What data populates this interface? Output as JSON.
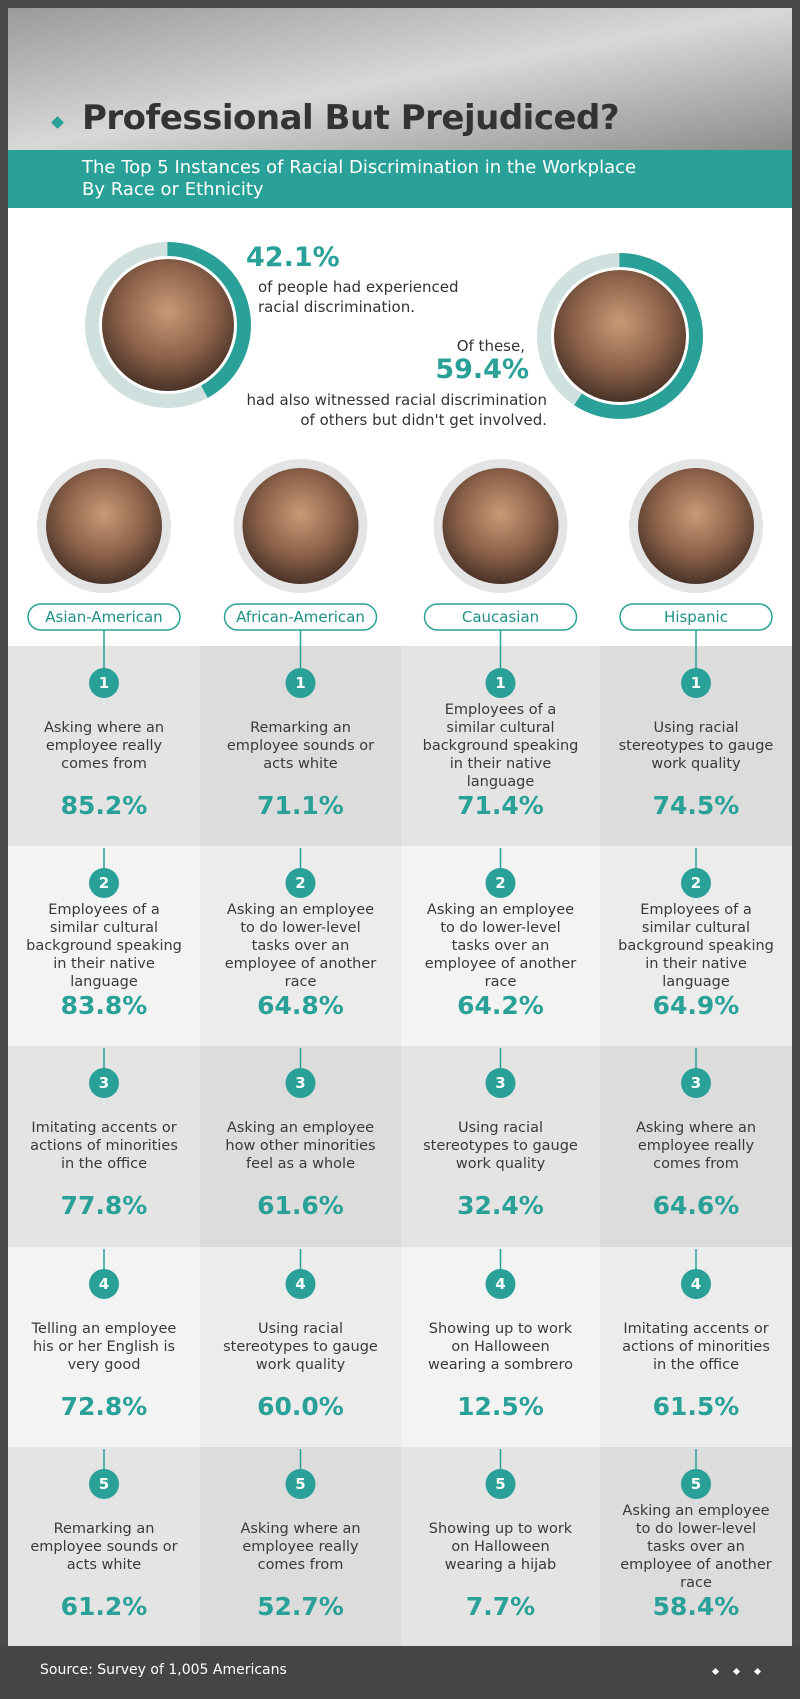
{
  "header": {
    "title": "Professional But Prejudiced?",
    "subtitle": [
      "The Top 5 Instances of Racial Discrimination in the Workplace",
      "By Race or Ethnicity"
    ]
  },
  "stats": {
    "values": [
      42.1,
      59.4
    ],
    "value_labels": [
      "42.1%",
      "59.4%"
    ],
    "first_text": [
      "of people had experienced",
      "racial discrimination."
    ],
    "second_intro": "Of these,",
    "second_text": [
      "had also witnessed racial discrimination",
      "of others but didn't get involved."
    ]
  },
  "groups": [
    {
      "name": "Asian-American",
      "items": [
        {
          "rank": "1",
          "text": "Asking where an employee really comes from",
          "value": "85.2%"
        },
        {
          "rank": "2",
          "text": "Employees of a similar cultural background speaking in their native language",
          "value": "83.8%"
        },
        {
          "rank": "3",
          "text": "Imitating accents or actions of minorities in the office",
          "value": "77.8%"
        },
        {
          "rank": "4",
          "text": "Telling an employee his or her English is very good",
          "value": "72.8%"
        },
        {
          "rank": "5",
          "text": "Remarking an employee sounds or acts white",
          "value": "61.2%"
        }
      ]
    },
    {
      "name": "African-American",
      "items": [
        {
          "rank": "1",
          "text": "Remarking an employee sounds or acts white",
          "value": "71.1%"
        },
        {
          "rank": "2",
          "text": "Asking an employee to do lower-level tasks over an employee of another race",
          "value": "64.8%"
        },
        {
          "rank": "3",
          "text": "Asking an employee how other minorities feel as a whole",
          "value": "61.6%"
        },
        {
          "rank": "4",
          "text": "Using racial stereotypes to gauge work quality",
          "value": "60.0%"
        },
        {
          "rank": "5",
          "text": "Asking where an employee really comes from",
          "value": "52.7%"
        }
      ]
    },
    {
      "name": "Caucasian",
      "items": [
        {
          "rank": "1",
          "text": "Employees of a similar cultural background speaking in their native language",
          "value": "71.4%"
        },
        {
          "rank": "2",
          "text": "Asking an employee to do lower-level tasks over an employee of another race",
          "value": "64.2%"
        },
        {
          "rank": "3",
          "text": "Using racial stereotypes to gauge work quality",
          "value": "32.4%"
        },
        {
          "rank": "4",
          "text": "Showing up to work on Halloween wearing a sombrero",
          "value": "12.5%"
        },
        {
          "rank": "5",
          "text": "Showing up to work on Halloween wearing a hijab",
          "value": "7.7%"
        }
      ]
    },
    {
      "name": "Hispanic",
      "items": [
        {
          "rank": "1",
          "text": "Using racial stereotypes to gauge work quality",
          "value": "74.5%"
        },
        {
          "rank": "2",
          "text": "Employees of a similar cultural background speaking in their native language",
          "value": "64.9%"
        },
        {
          "rank": "3",
          "text": "Asking where an employee really comes from",
          "value": "64.6%"
        },
        {
          "rank": "4",
          "text": "Imitating accents or actions of minorities in the office",
          "value": "61.5%"
        },
        {
          "rank": "5",
          "text": "Asking an employee to do lower-level tasks over an employee of another race",
          "value": "58.4%"
        }
      ]
    }
  ],
  "footer": {
    "source": "Source: Survey of 1,005 Americans"
  }
}
